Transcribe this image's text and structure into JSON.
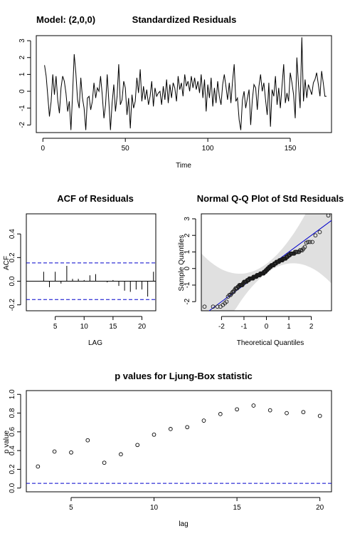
{
  "chart_data": [
    {
      "id": "residuals",
      "type": "line",
      "model_label": "Model: (2,0,0)",
      "title": "Standardized Residuals",
      "xlabel": "Time",
      "ylabel": "",
      "xlim": [
        -4,
        175
      ],
      "ylim": [
        -2.45,
        3.3
      ],
      "xticks": [
        0,
        50,
        100,
        150
      ],
      "yticks": [
        -2,
        -1,
        0,
        1,
        2,
        3
      ],
      "x_start": 1,
      "values": [
        1.55,
        0.9,
        -0.3,
        -1.5,
        -0.6,
        1.0,
        -0.2,
        0.9,
        -0.5,
        -1.3,
        0.2,
        0.9,
        0.6,
        -0.1,
        -1.2,
        -0.6,
        -2.3,
        -0.2,
        2.2,
        1.1,
        -0.5,
        -1.0,
        0.8,
        -0.4,
        -1.0,
        -2.3,
        -0.4,
        -0.3,
        -1.1,
        -0.6,
        0.5,
        -0.4,
        0.2,
        0.0,
        0.9,
        -0.2,
        -1.6,
        -0.8,
        1.0,
        -0.6,
        -2.3,
        -0.7,
        0.4,
        -1.2,
        -0.3,
        1.6,
        -0.8,
        -0.5,
        0.6,
        0.2,
        -1.4,
        -0.4,
        -2.2,
        -0.2,
        -1.0,
        -0.6,
        0.8,
        -0.1,
        1.3,
        -0.6,
        0.3,
        -0.5,
        0.1,
        -0.8,
        -0.3,
        0.6,
        -0.9,
        0.2,
        -0.3,
        -0.1,
        0.0,
        -0.8,
        0.3,
        -0.5,
        0.7,
        -0.7,
        0.4,
        -0.4,
        0.5,
        0.2,
        -0.6,
        0.9,
        0.1,
        0.5,
        -0.3,
        1.0,
        0.3,
        0.6,
        0.0,
        0.9,
        0.2,
        0.8,
        0.1,
        0.6,
        -0.1,
        1.0,
        -0.4,
        0.7,
        -1.2,
        0.4,
        -0.4,
        0.8,
        -0.9,
        0.2,
        -0.7,
        0.6,
        -0.3,
        -0.8,
        0.4,
        1.0,
        0.3,
        -0.5,
        0.5,
        -0.7,
        0.6,
        1.6,
        -0.6,
        -0.4,
        -1.7,
        -2.3,
        -0.5,
        0.0,
        -1.0,
        -0.4,
        0.1,
        -2.0,
        -0.5,
        0.4,
        0.2,
        -1.1,
        0.3,
        1.0,
        0.0,
        0.5,
        -0.5,
        -1.4,
        0.5,
        -2.1,
        0.1,
        -0.3,
        0.9,
        -0.8,
        0.2,
        -1.0,
        0.3,
        1.6,
        -0.7,
        -0.1,
        -0.6,
        1.1,
        0.5,
        -0.2,
        -1.6,
        2.0,
        0.4,
        -1.0,
        3.2,
        -0.6,
        0.7,
        -0.4,
        0.4,
        0.1,
        -0.2,
        0.5,
        0.7,
        1.1,
        0.4,
        -0.3,
        1.2,
        0.5,
        -0.3,
        -0.3
      ]
    },
    {
      "id": "acf",
      "type": "bar",
      "title": "ACF of Residuals",
      "xlabel": "LAG",
      "ylabel": "ACF",
      "xlim": [
        0,
        22.4
      ],
      "ylim": [
        -0.25,
        0.57
      ],
      "xticks": [
        5,
        10,
        15,
        20
      ],
      "yticks": [
        -0.2,
        0.0,
        0.2,
        0.4
      ],
      "confidence_bound": 0.155,
      "lags": [
        1,
        2,
        3,
        4,
        5,
        6,
        7,
        8,
        9,
        10,
        11,
        12,
        13,
        14,
        15,
        16,
        17,
        18,
        19,
        20,
        21,
        22
      ],
      "values": [
        0.0,
        0.0,
        0.08,
        -0.05,
        0.08,
        -0.02,
        0.13,
        0.02,
        0.02,
        0.01,
        0.05,
        0.06,
        0.0,
        -0.01,
        0.01,
        -0.04,
        -0.08,
        -0.09,
        -0.07,
        -0.07,
        -0.13,
        0.08
      ]
    },
    {
      "id": "qq",
      "type": "scatter",
      "title": "Normal Q-Q Plot of Std Residuals",
      "xlabel": "Theoretical Quantiles",
      "ylabel": "Sample Quantiles",
      "xlim": [
        -2.9,
        2.9
      ],
      "ylim": [
        -2.55,
        3.3
      ],
      "xticks": [
        -2,
        -1,
        0,
        1,
        2
      ],
      "yticks": [
        -2,
        -1,
        0,
        1,
        2,
        3
      ],
      "line": {
        "intercept": 0.0,
        "slope": 1.0
      }
    },
    {
      "id": "ljungbox",
      "type": "scatter",
      "title": "p values for Ljung-Box statistic",
      "xlabel": "lag",
      "ylabel": "p value",
      "xlim": [
        2.3,
        20.7
      ],
      "ylim": [
        -0.04,
        1.04
      ],
      "xticks": [
        5,
        10,
        15,
        20
      ],
      "yticks": [
        0.0,
        0.2,
        0.4,
        0.6,
        0.8,
        1.0
      ],
      "significance_level": 0.05,
      "x": [
        3,
        4,
        5,
        6,
        7,
        8,
        9,
        10,
        11,
        12,
        13,
        14,
        15,
        16,
        17,
        18,
        19,
        20
      ],
      "values": [
        0.23,
        0.39,
        0.38,
        0.51,
        0.27,
        0.36,
        0.46,
        0.57,
        0.63,
        0.65,
        0.72,
        0.79,
        0.84,
        0.88,
        0.83,
        0.8,
        0.81,
        0.77
      ]
    }
  ],
  "colors": {
    "line": "#000000",
    "confidence": "#0000cc",
    "band": "#e0e0e0",
    "qq_point": "#1a1a1a"
  }
}
